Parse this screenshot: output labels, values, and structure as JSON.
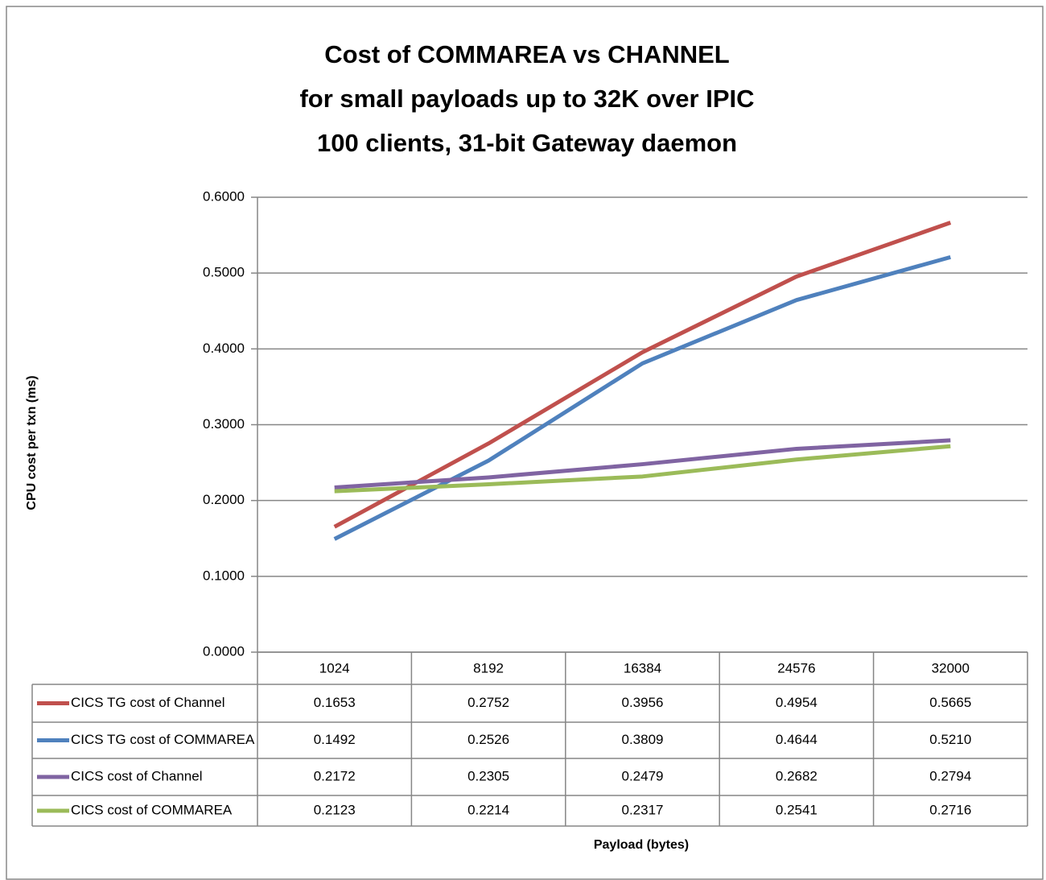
{
  "chart_data": {
    "type": "line",
    "title": [
      "Cost of COMMAREA vs CHANNEL",
      "for small payloads up to 32K over IPIC",
      "100 clients, 31-bit Gateway daemon"
    ],
    "ylabel": "CPU cost per txn (ms)",
    "xlabel": "Payload (bytes)",
    "categories": [
      "1024",
      "8192",
      "16384",
      "24576",
      "32000"
    ],
    "ylim": [
      0,
      0.6
    ],
    "yticks": [
      {
        "value": 0,
        "label": "0.0000"
      },
      {
        "value": 0.1,
        "label": "0.1000"
      },
      {
        "value": 0.2,
        "label": "0.2000"
      },
      {
        "value": 0.3,
        "label": "0.3000"
      },
      {
        "value": 0.4,
        "label": "0.4000"
      },
      {
        "value": 0.5,
        "label": "0.5000"
      },
      {
        "value": 0.6,
        "label": "0.6000"
      }
    ],
    "grid": true,
    "series": [
      {
        "name": "CICS TG cost of Channel",
        "color": "#c0504d",
        "values": [
          0.1653,
          0.2752,
          0.3956,
          0.4954,
          0.5665
        ],
        "value_labels": [
          "0.1653",
          "0.2752",
          "0.3956",
          "0.4954",
          "0.5665"
        ]
      },
      {
        "name": "CICS TG cost of COMMAREA",
        "color": "#4f81bd",
        "values": [
          0.1492,
          0.2526,
          0.3809,
          0.4644,
          0.521
        ],
        "value_labels": [
          "0.1492",
          "0.2526",
          "0.3809",
          "0.4644",
          "0.5210"
        ]
      },
      {
        "name": "CICS cost of Channel",
        "color": "#8064a2",
        "values": [
          0.2172,
          0.2305,
          0.2479,
          0.2682,
          0.2794
        ],
        "value_labels": [
          "0.2172",
          "0.2305",
          "0.2479",
          "0.2682",
          "0.2794"
        ]
      },
      {
        "name": "CICS cost of COMMAREA",
        "color": "#9bbb59",
        "values": [
          0.2123,
          0.2214,
          0.2317,
          0.2541,
          0.2716
        ],
        "value_labels": [
          "0.2123",
          "0.2214",
          "0.2317",
          "0.2541",
          "0.2716"
        ]
      }
    ]
  }
}
